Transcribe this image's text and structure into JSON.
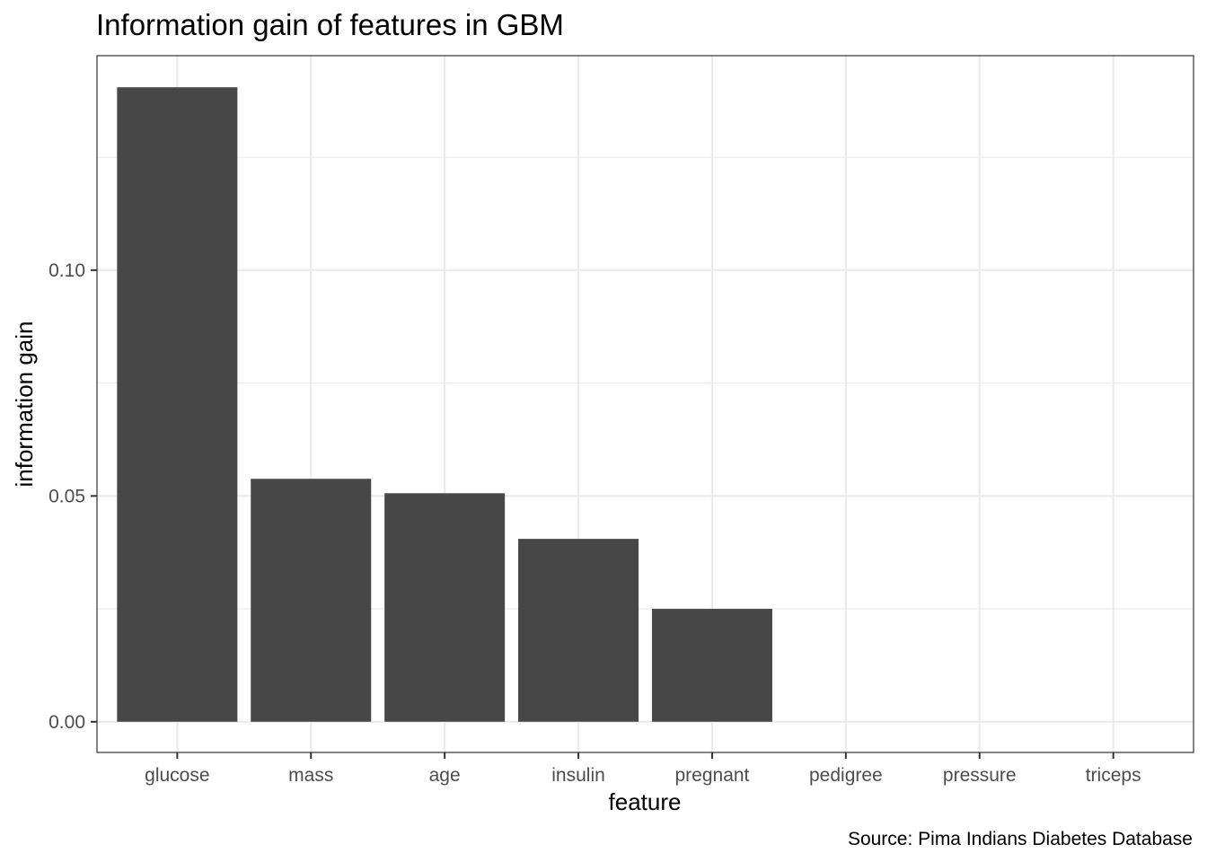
{
  "chart_data": {
    "type": "bar",
    "title": "Information gain of features in GBM",
    "xlabel": "feature",
    "ylabel": "information gain",
    "caption": "Source: Pima Indians Diabetes Database",
    "categories": [
      "glucose",
      "mass",
      "age",
      "insulin",
      "pregnant",
      "pedigree",
      "pressure",
      "triceps"
    ],
    "values": [
      0.1405,
      0.0538,
      0.0506,
      0.0405,
      0.025,
      0,
      0,
      0
    ],
    "ylim": [
      -0.0068,
      0.1475
    ],
    "yticks": [
      0,
      0.05,
      0.1
    ],
    "ytick_labels": [
      "0.00",
      "0.05",
      "0.10"
    ],
    "grid": true,
    "bar_color": "#474747",
    "grid_color": "#ebebeb",
    "legend": "none"
  }
}
